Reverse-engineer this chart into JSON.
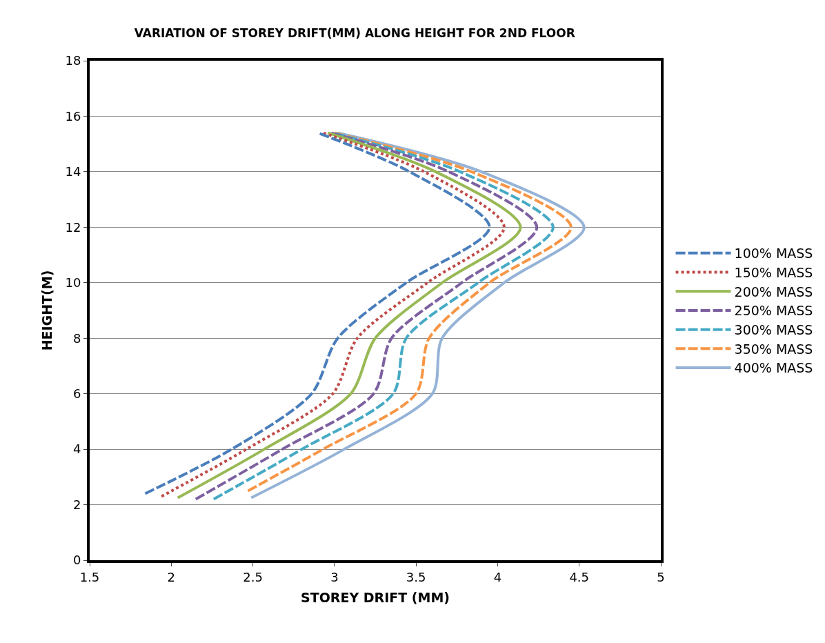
{
  "chart_data": {
    "type": "line",
    "title": "VARIATION OF STOREY DRIFT(MM) ALONG HEIGHT FOR 2ND FLOOR",
    "xlabel": "STOREY DRIFT (MM)",
    "ylabel": "HEIGHT(M)",
    "xlim": [
      1.5,
      5
    ],
    "xticks": [
      1.5,
      2,
      2.5,
      3,
      3.5,
      4,
      4.5,
      5
    ],
    "ylim": [
      0,
      18
    ],
    "yticks": [
      0,
      2,
      4,
      6,
      8,
      10,
      12,
      14,
      16,
      18
    ],
    "grid": "y",
    "legend": "right",
    "marker": "none",
    "series": [
      {
        "name": "100% MASS",
        "color": "#4a7ebb",
        "line_style": "dashed",
        "x": [
          1.84,
          2.37,
          2.86,
          3.02,
          3.44,
          3.95,
          3.46,
          2.9
        ],
        "values": [
          2.4,
          4,
          6,
          8,
          10,
          12,
          14,
          15.4
        ]
      },
      {
        "name": "150% MASS",
        "color": "#be4b48",
        "line_style": "dotted",
        "x": [
          1.94,
          2.46,
          2.99,
          3.14,
          3.57,
          4.04,
          3.55,
          2.93
        ],
        "values": [
          2.3,
          4,
          6,
          8,
          10,
          12,
          14,
          15.4
        ]
      },
      {
        "name": "200% MASS",
        "color": "#98b954",
        "line_style": "solid",
        "x": [
          2.04,
          2.57,
          3.1,
          3.25,
          3.66,
          4.14,
          3.62,
          2.96
        ],
        "values": [
          2.25,
          4,
          6,
          8,
          10,
          12,
          14,
          15.4
        ]
      },
      {
        "name": "250% MASS",
        "color": "#7d60a0",
        "line_style": "dashed",
        "x": [
          2.15,
          2.68,
          3.24,
          3.35,
          3.78,
          4.24,
          3.7,
          2.98
        ],
        "values": [
          2.2,
          4,
          6,
          8,
          10,
          12,
          14,
          15.4
        ]
      },
      {
        "name": "300% MASS",
        "color": "#46aac5",
        "line_style": "dashed",
        "x": [
          2.26,
          2.8,
          3.36,
          3.44,
          3.88,
          4.34,
          3.77,
          2.99
        ],
        "values": [
          2.2,
          4,
          6,
          8,
          10,
          12,
          14,
          15.4
        ]
      },
      {
        "name": "350% MASS",
        "color": "#f79646",
        "line_style": "dashed",
        "x": [
          2.47,
          2.93,
          3.5,
          3.58,
          3.95,
          4.45,
          3.84,
          3.0
        ],
        "values": [
          2.5,
          4,
          6,
          8,
          10,
          12,
          14,
          15.4
        ]
      },
      {
        "name": "400% MASS",
        "color": "#95b3d7",
        "line_style": "solid",
        "x": [
          2.49,
          3.06,
          3.6,
          3.66,
          4.04,
          4.53,
          3.9,
          3.02
        ],
        "values": [
          2.25,
          4,
          6,
          8,
          10,
          12,
          14,
          15.4
        ]
      }
    ]
  }
}
